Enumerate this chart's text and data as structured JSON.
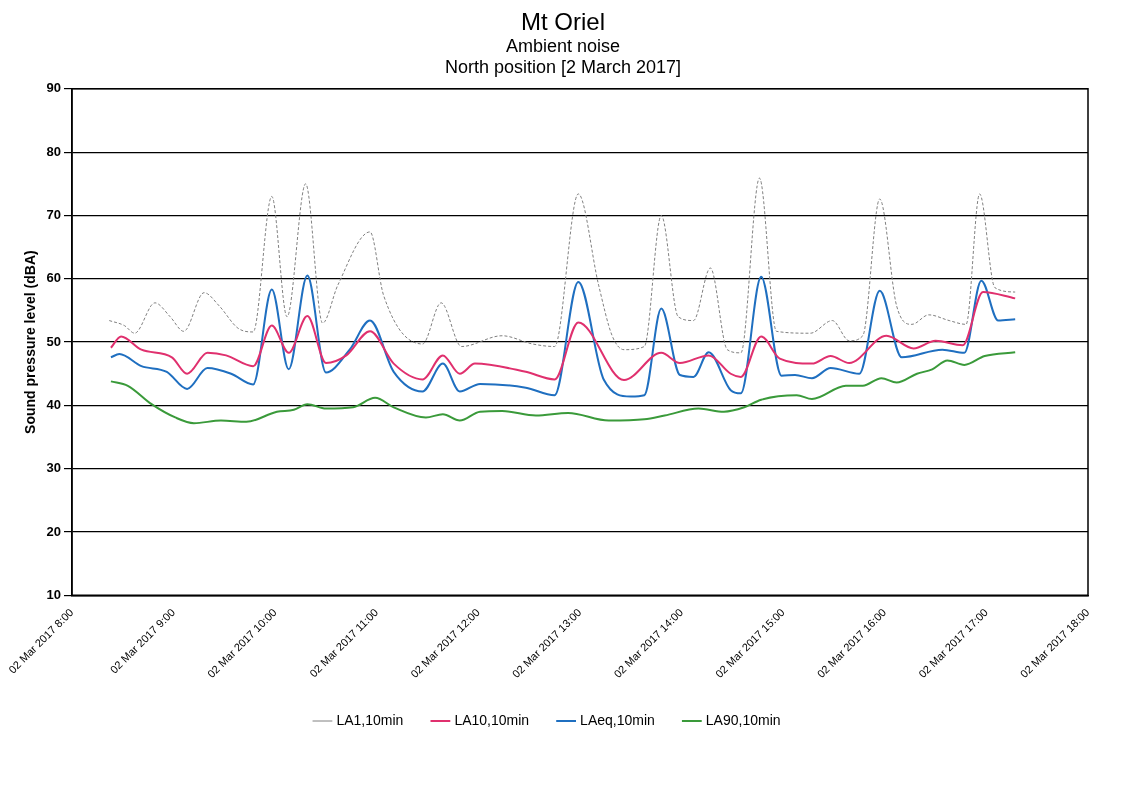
{
  "chart_data": {
    "type": "line",
    "title": "Mt Oriel",
    "subtitle": "Ambient noise\nNorth position [2 March 2017]",
    "ylabel": "Sound pressure level (dBA)",
    "xlim": [
      "2017-03-02T08:00",
      "2017-03-02T18:00"
    ],
    "xticks": [
      {
        "value": "2017-03-02T08:00",
        "label": "02 Mar 2017 8:00"
      },
      {
        "value": "2017-03-02T09:00",
        "label": "02 Mar 2017 9:00"
      },
      {
        "value": "2017-03-02T10:00",
        "label": "02 Mar 2017 10:00"
      },
      {
        "value": "2017-03-02T11:00",
        "label": "02 Mar 2017 11:00"
      },
      {
        "value": "2017-03-02T12:00",
        "label": "02 Mar 2017 12:00"
      },
      {
        "value": "2017-03-02T13:00",
        "label": "02 Mar 2017 13:00"
      },
      {
        "value": "2017-03-02T14:00",
        "label": "02 Mar 2017 14:00"
      },
      {
        "value": "2017-03-02T15:00",
        "label": "02 Mar 2017 15:00"
      },
      {
        "value": "2017-03-02T16:00",
        "label": "02 Mar 2017 16:00"
      },
      {
        "value": "2017-03-02T17:00",
        "label": "02 Mar 2017 17:00"
      },
      {
        "value": "2017-03-02T18:00",
        "label": "02 Mar 2017 18:00"
      }
    ],
    "ylim": [
      10,
      90
    ],
    "yticks": [
      10,
      20,
      30,
      40,
      50,
      60,
      70,
      80,
      90
    ],
    "grid": "y",
    "legend": "bottom",
    "marker": "none",
    "series": [
      {
        "name": "LA1,10min",
        "color": "#808080",
        "line_style": "dashed",
        "x": [
          "2017-03-02T08:22",
          "2017-03-02T08:31",
          "2017-03-02T08:37",
          "2017-03-02T08:49",
          "2017-03-02T08:58",
          "2017-03-02T09:06",
          "2017-03-02T09:18",
          "2017-03-02T09:27",
          "2017-03-02T09:38",
          "2017-03-02T09:47",
          "2017-03-02T09:58",
          "2017-03-02T10:07",
          "2017-03-02T10:18",
          "2017-03-02T10:28",
          "2017-03-02T10:37",
          "2017-03-02T10:56",
          "2017-03-02T11:04",
          "2017-03-02T11:27",
          "2017-03-02T11:38",
          "2017-03-02T11:50",
          "2017-03-02T12:14",
          "2017-03-02T12:32",
          "2017-03-02T12:45",
          "2017-03-02T12:59",
          "2017-03-02T13:11",
          "2017-03-02T13:19",
          "2017-03-02T13:26",
          "2017-03-02T13:38",
          "2017-03-02T13:48",
          "2017-03-02T13:58",
          "2017-03-02T14:07",
          "2017-03-02T14:17",
          "2017-03-02T14:27",
          "2017-03-02T14:35",
          "2017-03-02T14:46",
          "2017-03-02T14:56",
          "2017-03-02T15:16",
          "2017-03-02T15:29",
          "2017-03-02T15:39",
          "2017-03-02T15:47",
          "2017-03-02T15:57",
          "2017-03-02T16:07",
          "2017-03-02T16:16",
          "2017-03-02T16:26",
          "2017-03-02T16:38",
          "2017-03-02T16:48",
          "2017-03-02T16:56",
          "2017-03-02T17:05",
          "2017-03-02T17:17"
        ],
        "values": [
          53.4,
          52.6,
          51.4,
          56.2,
          54,
          51.7,
          57.8,
          55.7,
          52.2,
          51.6,
          73,
          54,
          75,
          53,
          59,
          67.4,
          57.4,
          49.7,
          56.2,
          49.3,
          51,
          49.7,
          49.3,
          73.4,
          59,
          51,
          48.8,
          49.3,
          70,
          54,
          53.4,
          61.7,
          48.8,
          48.3,
          75.9,
          51.7,
          51.4,
          53.4,
          50.2,
          51,
          72.6,
          55.7,
          52.8,
          54.3,
          53.4,
          52.8,
          73.4,
          58.6,
          57.9
        ]
      },
      {
        "name": "LA10,10min",
        "color": "#e0306e",
        "x": [
          "2017-03-02T08:23",
          "2017-03-02T08:29",
          "2017-03-02T08:41",
          "2017-03-02T08:59",
          "2017-03-02T09:08",
          "2017-03-02T09:20",
          "2017-03-02T09:31",
          "2017-03-02T09:47",
          "2017-03-02T09:58",
          "2017-03-02T10:08",
          "2017-03-02T10:19",
          "2017-03-02T10:30",
          "2017-03-02T10:42",
          "2017-03-02T10:56",
          "2017-03-02T11:10",
          "2017-03-02T11:27",
          "2017-03-02T11:39",
          "2017-03-02T11:49",
          "2017-03-02T11:58",
          "2017-03-02T12:28",
          "2017-03-02T12:45",
          "2017-03-02T12:59",
          "2017-03-02T13:26",
          "2017-03-02T13:48",
          "2017-03-02T13:59",
          "2017-03-02T14:16",
          "2017-03-02T14:29",
          "2017-03-02T14:35",
          "2017-03-02T14:47",
          "2017-03-02T14:58",
          "2017-03-02T15:17",
          "2017-03-02T15:28",
          "2017-03-02T15:39",
          "2017-03-02T16:01",
          "2017-03-02T16:17",
          "2017-03-02T16:30",
          "2017-03-02T16:46",
          "2017-03-02T16:58",
          "2017-03-02T17:17"
        ],
        "values": [
          49.1,
          50.9,
          48.8,
          47.6,
          45,
          48.3,
          47.9,
          46.2,
          52.6,
          48.3,
          54.1,
          46.7,
          47.9,
          51.7,
          46.6,
          44.1,
          47.9,
          45,
          46.6,
          45.3,
          44.1,
          53.1,
          44,
          48.3,
          46.7,
          47.9,
          45,
          44.5,
          50.9,
          47.4,
          46.6,
          47.8,
          46.7,
          51,
          49,
          50.2,
          49.5,
          57.9,
          56.9
        ]
      },
      {
        "name": "LAeq,10min",
        "color": "#1f6fc0",
        "x": [
          "2017-03-02T08:23",
          "2017-03-02T08:28",
          "2017-03-02T08:41",
          "2017-03-02T08:56",
          "2017-03-02T09:08",
          "2017-03-02T09:20",
          "2017-03-02T09:34",
          "2017-03-02T09:47",
          "2017-03-02T09:58",
          "2017-03-02T10:08",
          "2017-03-02T10:19",
          "2017-03-02T10:30",
          "2017-03-02T10:44",
          "2017-03-02T10:56",
          "2017-03-02T11:10",
          "2017-03-02T11:27",
          "2017-03-02T11:39",
          "2017-03-02T11:49",
          "2017-03-02T12:01",
          "2017-03-02T12:28",
          "2017-03-02T12:45",
          "2017-03-02T12:59",
          "2017-03-02T13:14",
          "2017-03-02T13:30",
          "2017-03-02T13:38",
          "2017-03-02T13:48",
          "2017-03-02T13:59",
          "2017-03-02T14:07",
          "2017-03-02T14:16",
          "2017-03-02T14:29",
          "2017-03-02T14:35",
          "2017-03-02T14:47",
          "2017-03-02T14:59",
          "2017-03-02T15:07",
          "2017-03-02T15:17",
          "2017-03-02T15:28",
          "2017-03-02T15:45",
          "2017-03-02T15:57",
          "2017-03-02T16:10",
          "2017-03-02T16:34",
          "2017-03-02T16:47",
          "2017-03-02T16:57",
          "2017-03-02T17:07",
          "2017-03-02T17:17"
        ],
        "values": [
          47.6,
          48.1,
          46.2,
          45.3,
          42.6,
          45.9,
          45,
          43.3,
          58.3,
          45.7,
          60.5,
          45.2,
          48.8,
          53.4,
          45.3,
          42.2,
          46.6,
          42.2,
          43.4,
          42.8,
          41.6,
          59.5,
          44.1,
          41.4,
          41.6,
          55.3,
          44.8,
          44.5,
          48.4,
          42.4,
          41.9,
          60.3,
          44.7,
          44.8,
          44.3,
          45.9,
          45,
          58.1,
          47.6,
          48.8,
          48.3,
          59.7,
          53.4,
          53.6
        ]
      },
      {
        "name": "LA90,10min",
        "color": "#3a9a3a",
        "x": [
          "2017-03-02T08:23",
          "2017-03-02T08:33",
          "2017-03-02T08:47",
          "2017-03-02T09:01",
          "2017-03-02T09:12",
          "2017-03-02T09:28",
          "2017-03-02T09:43",
          "2017-03-02T10:01",
          "2017-03-02T10:11",
          "2017-03-02T10:19",
          "2017-03-02T10:30",
          "2017-03-02T10:46",
          "2017-03-02T10:59",
          "2017-03-02T11:10",
          "2017-03-02T11:29",
          "2017-03-02T11:39",
          "2017-03-02T11:49",
          "2017-03-02T12:01",
          "2017-03-02T12:14",
          "2017-03-02T12:34",
          "2017-03-02T12:53",
          "2017-03-02T13:17",
          "2017-03-02T13:38",
          "2017-03-02T13:50",
          "2017-03-02T14:10",
          "2017-03-02T14:25",
          "2017-03-02T14:37",
          "2017-03-02T14:47",
          "2017-03-02T15:08",
          "2017-03-02T15:17",
          "2017-03-02T15:37",
          "2017-03-02T15:47",
          "2017-03-02T15:58",
          "2017-03-02T16:07",
          "2017-03-02T16:19",
          "2017-03-02T16:28",
          "2017-03-02T16:37",
          "2017-03-02T16:47",
          "2017-03-02T16:59",
          "2017-03-02T17:17"
        ],
        "values": [
          43.8,
          43.1,
          40.2,
          38.1,
          37.2,
          37.6,
          37.4,
          39,
          39.3,
          40.2,
          39.5,
          39.7,
          41.2,
          39.7,
          38.1,
          38.6,
          37.6,
          39,
          39.1,
          38.4,
          38.8,
          37.6,
          37.8,
          38.4,
          39.5,
          39,
          39.7,
          40.9,
          41.6,
          41,
          43.1,
          43.1,
          44.3,
          43.6,
          45,
          45.7,
          47.1,
          46.4,
          47.8,
          48.4
        ]
      }
    ]
  }
}
